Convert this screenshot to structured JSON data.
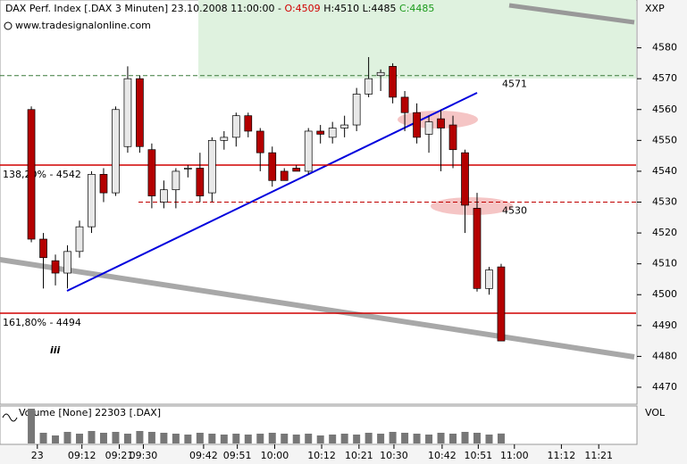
{
  "header": {
    "title": "DAX Perf. Index [.DAX  3 Minuten] 23.10.2008 11:00:00 -",
    "open": "O:4509",
    "high": "H:4510",
    "low": "L:4485",
    "close": "C:4485",
    "source": "www.tradesignalonline.com",
    "corner": "XXP"
  },
  "chart_data": {
    "type": "candlestick",
    "open": [
      4560,
      4518,
      4511,
      4507,
      4514,
      4522,
      4539,
      4533,
      4548,
      4570,
      4547,
      4530,
      4534,
      4541,
      4541,
      4533,
      4550,
      4551,
      4558,
      4553,
      4546,
      4540,
      4541,
      4540,
      4553,
      4551,
      4554,
      4555,
      4565,
      4571,
      4574,
      4564,
      4559,
      4552,
      4557,
      4555,
      4546,
      4528,
      4502,
      4509
    ],
    "high": [
      4561,
      4520,
      4513,
      4516,
      4524,
      4540,
      4541,
      4561,
      4574,
      4571,
      4549,
      4537,
      4541,
      4542,
      4546,
      4551,
      4553,
      4559,
      4559,
      4554,
      4548,
      4541,
      4542,
      4554,
      4555,
      4556,
      4558,
      4567,
      4577,
      4573,
      4575,
      4566,
      4562,
      4558,
      4560,
      4558,
      4547,
      4533,
      4509,
      4510
    ],
    "low": [
      4517,
      4502,
      4503,
      4502,
      4512,
      4520,
      4530,
      4532,
      4546,
      4546,
      4528,
      4528,
      4528,
      4538,
      4530,
      4530,
      4547,
      4548,
      4551,
      4540,
      4535,
      4537,
      4540,
      4539,
      4549,
      4549,
      4551,
      4553,
      4564,
      4566,
      4562,
      4553,
      4549,
      4546,
      4540,
      4541,
      4520,
      4501,
      4500,
      4485
    ],
    "close": [
      4518,
      4512,
      4507,
      4514,
      4522,
      4539,
      4533,
      4560,
      4570,
      4548,
      4532,
      4534,
      4540,
      4541,
      4532,
      4550,
      4551,
      4558,
      4553,
      4546,
      4537,
      4537,
      4540,
      4553,
      4552,
      4554,
      4555,
      4565,
      4570,
      4572,
      4564,
      4559,
      4551,
      4556,
      4554,
      4547,
      4529,
      4502,
      4508,
      4485
    ],
    "volume": [
      78000,
      24000,
      18000,
      26000,
      22000,
      28000,
      24000,
      26000,
      22000,
      28000,
      26000,
      24000,
      22000,
      20000,
      24000,
      22000,
      20000,
      22000,
      20000,
      22000,
      24000,
      22000,
      20000,
      22000,
      18000,
      20000,
      22000,
      20000,
      24000,
      22000,
      26000,
      24000,
      22000,
      20000,
      24000,
      22000,
      26000,
      24000,
      20000,
      22303
    ],
    "up_color": "#e8e8e8",
    "down_color": "#b40000",
    "ylim": [
      4464.5,
      4595.5
    ],
    "yticks": [
      4470,
      4480,
      4490,
      4500,
      4510,
      4520,
      4530,
      4540,
      4550,
      4560,
      4570,
      4580
    ],
    "xlim": [
      -2.6,
      50.2
    ],
    "xticks": [
      {
        "value": 0.5,
        "label": "23"
      },
      {
        "value": 4.2,
        "label": "09:12"
      },
      {
        "value": 7.3,
        "label": "09:21"
      },
      {
        "value": 9.3,
        "label": "09:30"
      },
      {
        "value": 14.3,
        "label": "09:42"
      },
      {
        "value": 17.1,
        "label": "09:51"
      },
      {
        "value": 20.2,
        "label": "10:00"
      },
      {
        "value": 24.1,
        "label": "10:12"
      },
      {
        "value": 27.2,
        "label": "10:21"
      },
      {
        "value": 30.1,
        "label": "10:30"
      },
      {
        "value": 34.1,
        "label": "10:42"
      },
      {
        "value": 37.1,
        "label": "10:51"
      },
      {
        "value": 40.1,
        "label": "11:00"
      },
      {
        "value": 44.0,
        "label": "11:12"
      },
      {
        "value": 47.1,
        "label": "11:21"
      }
    ],
    "vol_ylim": [
      0,
      80000
    ],
    "volume_label": "Volume [None] 22303 [.DAX]",
    "volume_axis": "VOL",
    "levels": [
      {
        "value": 4571,
        "label": "4571",
        "color": "#3a7a3a",
        "dashed": true
      },
      {
        "value": 4530,
        "label": "4530",
        "color": "#c00000",
        "dashed": true
      },
      {
        "value": 4542,
        "label": "138,20% - 4542",
        "color": "#d00000",
        "dashed": false
      },
      {
        "value": 4494,
        "label": "161,80% - 4494",
        "color": "#d00000",
        "dashed": false
      }
    ]
  }
}
